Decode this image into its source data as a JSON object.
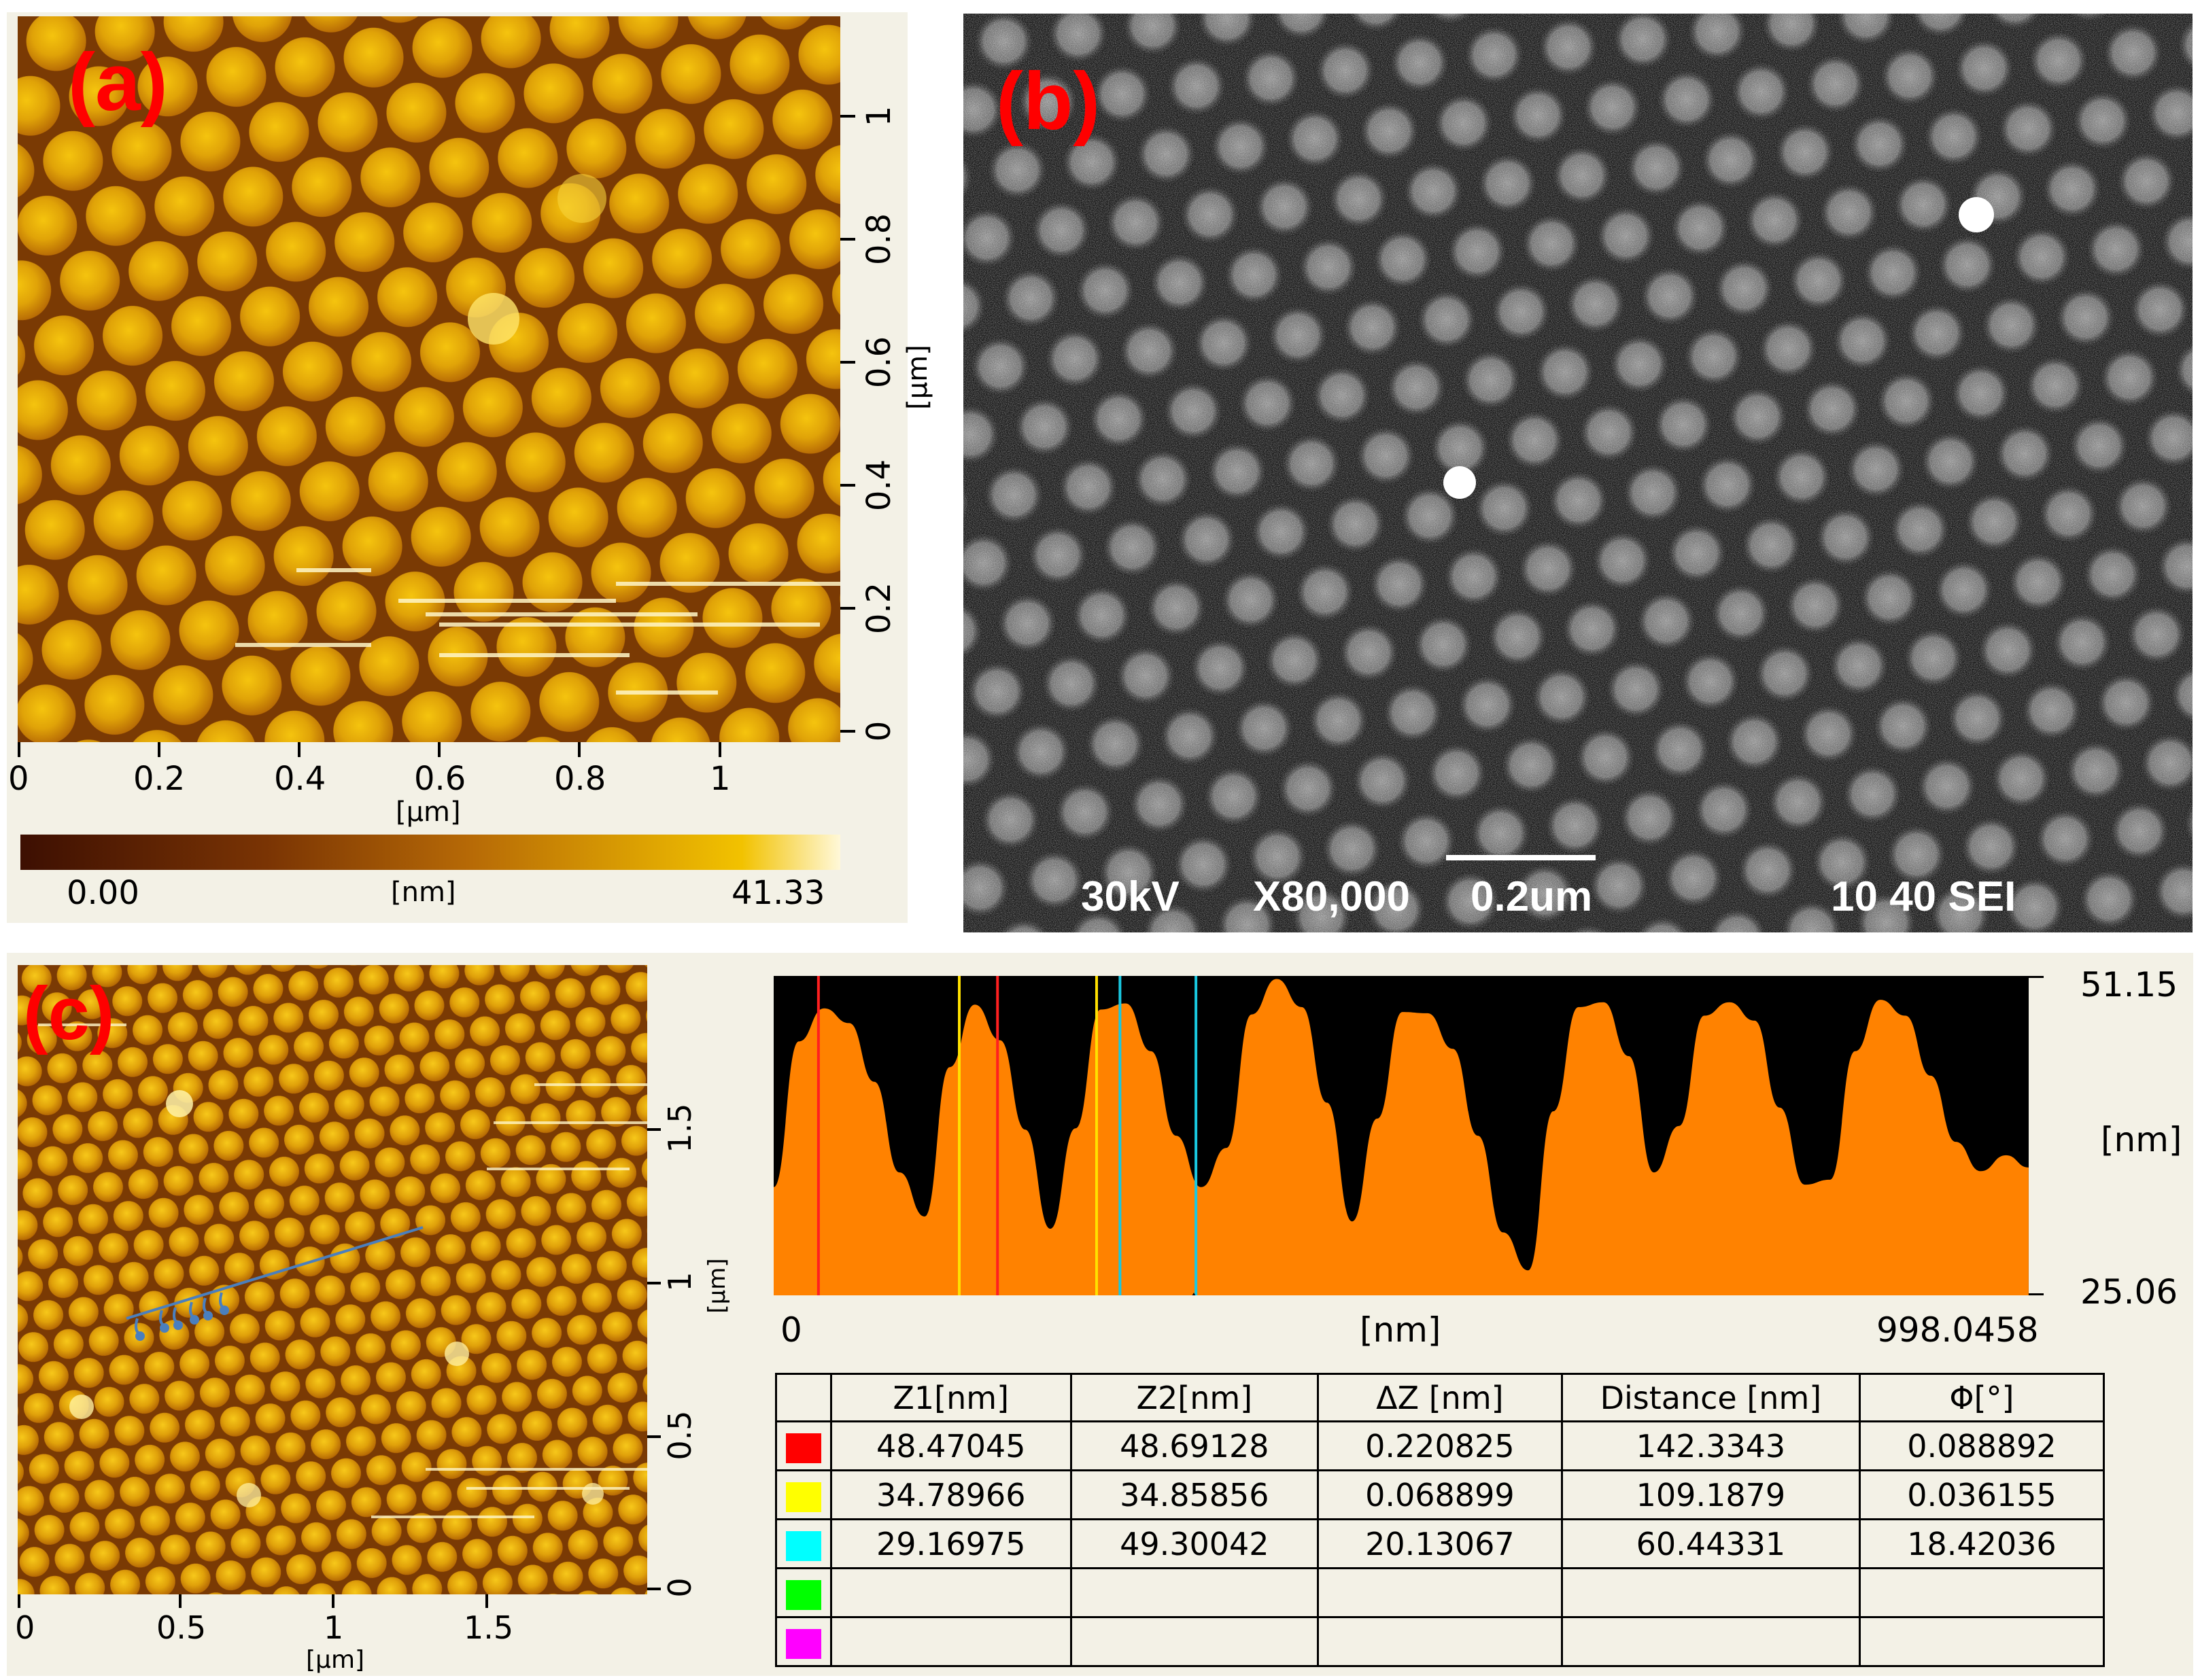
{
  "panels": {
    "a": {
      "label": "(a)",
      "x_ticks": [
        "0",
        "0.2",
        "0.4",
        "0.6",
        "0.8",
        "1"
      ],
      "x_unit": "[µm]",
      "y_ticks": [
        "0",
        "0.2",
        "0.4",
        "0.6",
        "0.8",
        "1"
      ],
      "y_unit": "[µm]",
      "colorbar": {
        "min": "0.00",
        "unit": "[nm]",
        "max": "41.33"
      },
      "colors": {
        "dark": "#3d0f02",
        "mid": "#b76a06",
        "bright": "#f2c200",
        "light": "#fff8d8"
      }
    },
    "b": {
      "label": "(b)",
      "voltage": "30kV",
      "magnification": "X80,000",
      "scale": "0.2um",
      "wd_mode": "10 40 SEI"
    },
    "c": {
      "label": "(c)",
      "x_ticks": [
        "0",
        "0.5",
        "1",
        "1.5"
      ],
      "x_unit": "[µm]",
      "y_ticks": [
        "0",
        "0.5",
        "1",
        "1.5"
      ],
      "y_unit": "[µm]"
    }
  },
  "chart_data": {
    "type": "area",
    "title": "",
    "xlabel": "[nm]",
    "ylabel": "[nm]",
    "x_range_labels": [
      "0",
      "998.0458"
    ],
    "y_range_labels": [
      "25.06",
      "51.15"
    ],
    "xlim": [
      0,
      998.0458
    ],
    "ylim": [
      25.06,
      51.15
    ],
    "fill_color": "#ff8200",
    "background_color": "#000000",
    "profile": {
      "x": [
        0,
        20,
        40,
        60,
        80,
        100,
        120,
        140,
        160,
        180,
        200,
        220,
        240,
        260,
        280,
        300,
        320,
        340,
        360,
        380,
        400,
        420,
        440,
        460,
        480,
        500,
        520,
        540,
        560,
        580,
        600,
        620,
        640,
        660,
        680,
        700,
        720,
        740,
        760,
        780,
        800,
        820,
        840,
        860,
        880,
        900,
        920,
        940,
        960,
        980,
        998
      ],
      "y": [
        33.9,
        45.8,
        48.5,
        47.3,
        42.5,
        35.1,
        31.5,
        43.7,
        48.8,
        45.9,
        38.6,
        30.5,
        38.7,
        48.4,
        48.9,
        45.0,
        38.1,
        33.9,
        37.1,
        48.0,
        50.9,
        48.6,
        40.8,
        31.1,
        39.5,
        48.2,
        48.1,
        45.2,
        38.1,
        30.2,
        27.1,
        40.1,
        48.6,
        49.0,
        44.6,
        35.1,
        38.9,
        47.9,
        49.0,
        47.5,
        40.4,
        34.1,
        34.5,
        45.0,
        49.2,
        47.9,
        43.0,
        37.6,
        35.2,
        36.5,
        35.5
      ]
    },
    "cursors": [
      {
        "color": "red",
        "x": [
          35.6,
          178.0
        ]
      },
      {
        "color": "yellow",
        "x": [
          147.6,
          256.8
        ]
      },
      {
        "color": "cyan",
        "x": [
          275.4,
          335.8
        ]
      }
    ],
    "measurements": {
      "columns": [
        "Z1[nm]",
        "Z2[nm]",
        "ΔZ [nm]",
        "Distance [nm]",
        "Φ[°]"
      ],
      "rows": [
        {
          "color": "#ff0000",
          "values": [
            "48.47045",
            "48.69128",
            "0.220825",
            "142.3343",
            "0.088892"
          ]
        },
        {
          "color": "#ffff00",
          "values": [
            "34.78966",
            "34.85856",
            "0.068899",
            "109.1879",
            "0.036155"
          ]
        },
        {
          "color": "#00ffff",
          "values": [
            "29.16975",
            "49.30042",
            "20.13067",
            "60.44331",
            "18.42036"
          ]
        },
        {
          "color": "#00ff00",
          "values": [
            "",
            "",
            "",
            "",
            ""
          ]
        },
        {
          "color": "#ff00ff",
          "values": [
            "",
            "",
            "",
            "",
            ""
          ]
        }
      ]
    }
  }
}
